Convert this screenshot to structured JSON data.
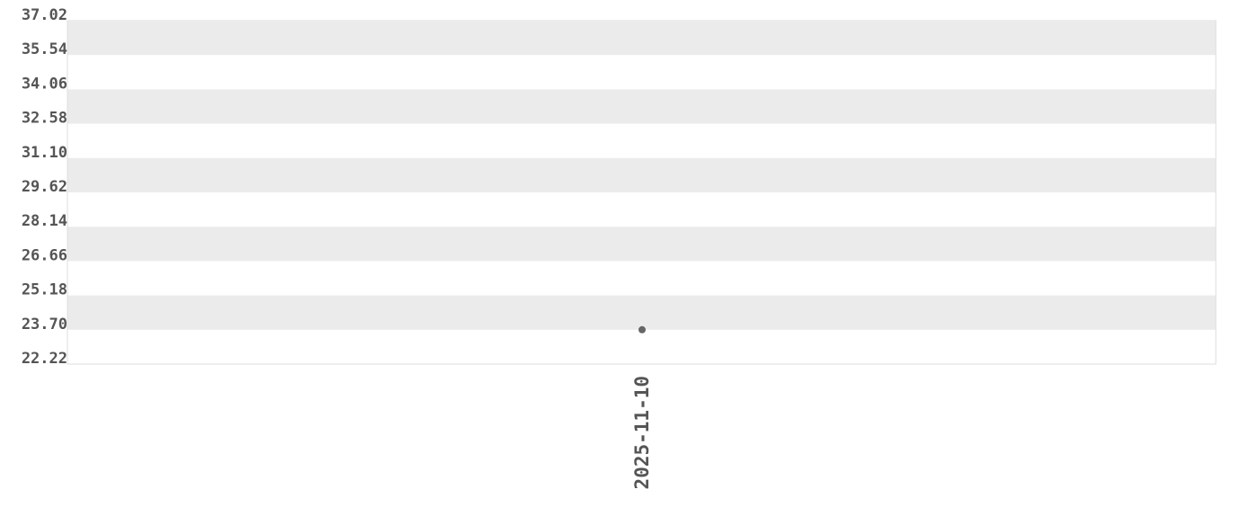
{
  "chart_data": {
    "type": "scatter",
    "title": "",
    "xlabel": "",
    "ylabel": "",
    "ylim": [
      22.22,
      37.02
    ],
    "y_ticks": [
      "22.22",
      "23.70",
      "25.18",
      "26.66",
      "28.14",
      "29.62",
      "31.10",
      "32.58",
      "34.06",
      "35.54",
      "37.02"
    ],
    "categories": [
      "2025-11-10"
    ],
    "points": [
      {
        "x": "2025-11-10",
        "y": 23.7
      }
    ],
    "grid": "alternating horizontal bands",
    "colors": {
      "band": "#ebebeb",
      "point": "#666666",
      "text": "#555555",
      "border": "#dddddd"
    }
  }
}
